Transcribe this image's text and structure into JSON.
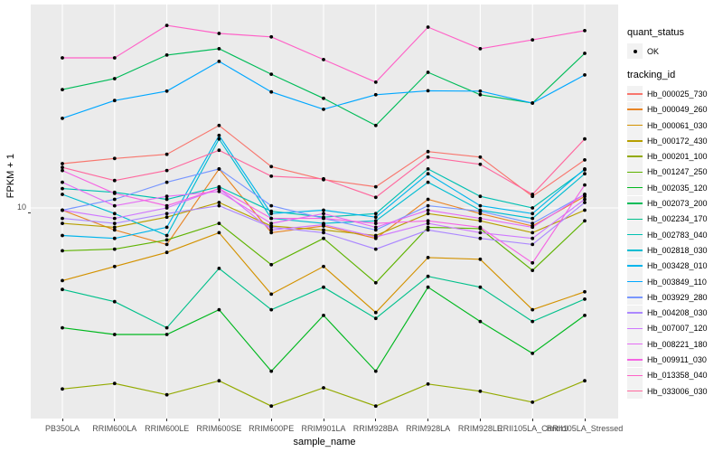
{
  "figure": {
    "y_axis": {
      "title": "FPKM + 1",
      "scale": "log10",
      "tick_labels": [
        "10"
      ]
    },
    "x_axis": {
      "title": "sample_name"
    },
    "legend": {
      "quant_status_title": "quant_status",
      "quant_status_items": [
        "OK"
      ],
      "quant_status_marker": "black-point",
      "tracking_id_title": "tracking_id",
      "position": "right"
    },
    "colors": {
      "panel_bg": "#EBEBEB",
      "grid": "#FFFFFF",
      "legend_key_bg": "#F2F2F2",
      "tick_text": "#4D4D4D",
      "tick_mark": "#333333",
      "point": "#000000"
    }
  },
  "chart_data": {
    "type": "line",
    "title": "",
    "xlabel": "sample_name",
    "ylabel": "FPKM + 1",
    "yscale": "log10",
    "ylim": [
      1.5,
      62
    ],
    "grid": "major-only",
    "legend_position": "right",
    "marker": "black-point",
    "categories": [
      "PB350LA",
      "RRIM600LA",
      "RRIM600LE",
      "RRIM600SE",
      "RRIM600PE",
      "RRIM901LA",
      "RRIM928BA",
      "RRIM928LA",
      "RRIM928LE",
      "RRII105LA_Control",
      "RRII105LA_Stressed"
    ],
    "series": [
      {
        "name": "Hb_000025_730",
        "color": "#F8766D",
        "values": [
          14.9,
          15.6,
          16.2,
          21.0,
          14.5,
          12.9,
          12.1,
          16.6,
          15.8,
          11.1,
          15.4
        ]
      },
      {
        "name": "Hb_000049_260",
        "color": "#E88526",
        "values": [
          9.8,
          8.2,
          7.2,
          14.2,
          8.0,
          8.5,
          7.6,
          10.8,
          9.5,
          8.5,
          11.1
        ]
      },
      {
        "name": "Hb_000061_030",
        "color": "#D39200",
        "values": [
          5.2,
          5.9,
          6.7,
          8.0,
          4.6,
          5.9,
          3.9,
          6.4,
          6.3,
          4.0,
          4.7
        ]
      },
      {
        "name": "Hb_000172_430",
        "color": "#B79F00",
        "values": [
          8.7,
          8.4,
          9.2,
          10.5,
          8.5,
          8.2,
          7.8,
          9.5,
          8.9,
          8.0,
          9.8
        ]
      },
      {
        "name": "Hb_000201_100",
        "color": "#93AA00",
        "values": [
          1.96,
          2.06,
          1.86,
          2.11,
          1.68,
          1.98,
          1.68,
          2.05,
          1.92,
          1.74,
          2.11
        ]
      },
      {
        "name": "Hb_001247_250",
        "color": "#5EB300",
        "values": [
          6.8,
          6.9,
          7.5,
          8.7,
          6.0,
          7.6,
          5.1,
          8.4,
          8.3,
          5.7,
          8.9
        ]
      },
      {
        "name": "Hb_002035_120",
        "color": "#00B81F",
        "values": [
          3.4,
          3.2,
          3.2,
          4.0,
          2.3,
          3.8,
          2.3,
          4.9,
          3.6,
          2.7,
          3.8
        ]
      },
      {
        "name": "Hb_002073_200",
        "color": "#00BC59",
        "values": [
          29.0,
          32.0,
          39.6,
          41.9,
          33.3,
          26.8,
          21.0,
          33.9,
          27.7,
          25.7,
          40.2
        ]
      },
      {
        "name": "Hb_002234_170",
        "color": "#00C08B",
        "values": [
          4.8,
          4.3,
          3.4,
          5.8,
          4.0,
          4.9,
          3.7,
          5.4,
          4.9,
          3.6,
          4.4
        ]
      },
      {
        "name": "Hb_002783_040",
        "color": "#00C0B2",
        "values": [
          11.9,
          11.5,
          10.8,
          12.1,
          9.7,
          9.2,
          9.5,
          14.2,
          11.1,
          10.0,
          14.1
        ]
      },
      {
        "name": "Hb_002818_030",
        "color": "#00BDD2",
        "values": [
          11.3,
          9.5,
          7.8,
          18.6,
          9.1,
          8.7,
          8.9,
          12.6,
          9.8,
          9.1,
          13.6
        ]
      },
      {
        "name": "Hb_003428_010",
        "color": "#00B5EC",
        "values": [
          7.8,
          7.6,
          8.4,
          19.2,
          9.5,
          9.8,
          9.2,
          13.6,
          10.2,
          9.5,
          14.2
        ]
      },
      {
        "name": "Hb_003849_110",
        "color": "#00A7FF",
        "values": [
          22.4,
          26.3,
          28.6,
          37.4,
          28.4,
          24.3,
          27.7,
          28.7,
          28.6,
          25.7,
          33.1
        ]
      },
      {
        "name": "Hb_003929_280",
        "color": "#7997FF",
        "values": [
          9.8,
          10.8,
          12.6,
          14.2,
          10.2,
          9.1,
          8.2,
          10.2,
          9.7,
          8.7,
          11.3
        ]
      },
      {
        "name": "Hb_004208_030",
        "color": "#AC88FF",
        "values": [
          9.1,
          8.7,
          9.5,
          10.2,
          8.4,
          8.0,
          6.9,
          8.2,
          7.6,
          7.2,
          10.5
        ]
      },
      {
        "name": "Hb_007007_120",
        "color": "#CF78FF",
        "values": [
          9.8,
          9.1,
          10.0,
          11.9,
          8.2,
          8.6,
          7.7,
          8.7,
          8.0,
          7.6,
          10.8
        ]
      },
      {
        "name": "Hb_008221_180",
        "color": "#E56DF5",
        "values": [
          12.6,
          10.2,
          11.1,
          11.6,
          8.7,
          9.5,
          8.4,
          9.8,
          9.1,
          8.4,
          11.3
        ]
      },
      {
        "name": "Hb_009911_030",
        "color": "#F566E3",
        "values": [
          14.0,
          11.4,
          10.2,
          11.9,
          9.1,
          9.1,
          8.7,
          8.9,
          8.4,
          6.1,
          12.3
        ]
      },
      {
        "name": "Hb_013358_040",
        "color": "#FF61C7",
        "values": [
          38.6,
          38.6,
          51.7,
          48.1,
          46.6,
          38.0,
          31.0,
          50.9,
          41.9,
          45.4,
          49.3
        ]
      },
      {
        "name": "Hb_033006_030",
        "color": "#FF689E",
        "values": [
          14.4,
          12.8,
          14.0,
          16.8,
          13.3,
          13.0,
          11.0,
          15.8,
          14.8,
          11.3,
          18.6
        ]
      }
    ]
  }
}
